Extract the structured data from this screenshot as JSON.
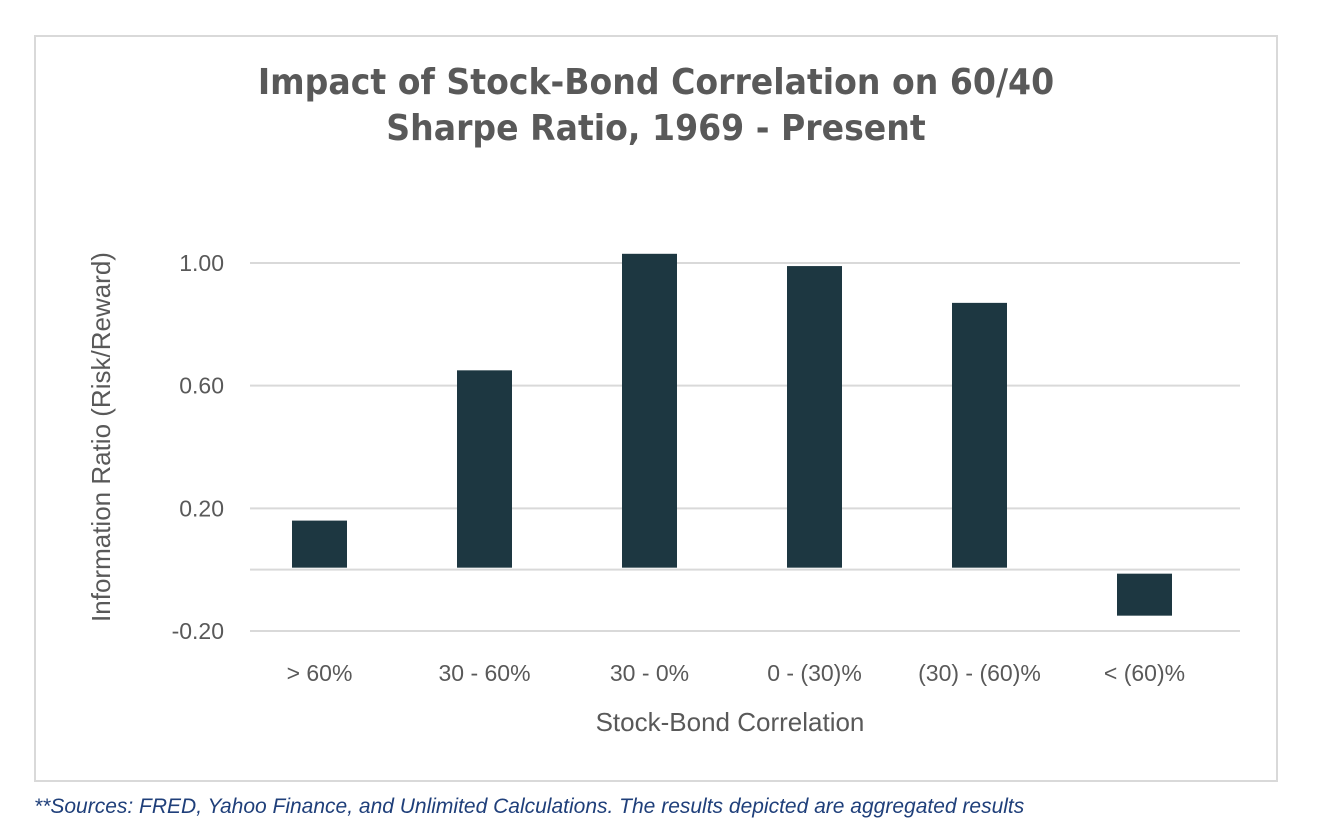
{
  "chart_data": {
    "type": "bar",
    "title_lines": [
      "Impact of Stock-Bond Correlation on 60/40",
      "Sharpe Ratio, 1969 - Present"
    ],
    "xlabel": "Stock-Bond Correlation",
    "ylabel": "Information Ratio (Risk/Reward)",
    "categories": [
      "> 60%",
      "30 - 60%",
      "30 - 0%",
      "0 - (30)%",
      "(30) - (60)%",
      "< (60)%"
    ],
    "values": [
      0.16,
      0.65,
      1.03,
      0.99,
      0.87,
      -0.15
    ],
    "ylim": [
      -0.2,
      1.0
    ],
    "yticks": [
      1.0,
      0.6,
      0.2,
      -0.2
    ],
    "ytick_labels": [
      "1.00",
      "0.60",
      "0.20",
      "-0.20"
    ],
    "gridlines": [
      1.0,
      0.6,
      0.2,
      0.0,
      -0.2
    ],
    "grid": true,
    "legend": "none",
    "bar_color": "#1d3741",
    "grid_color": "#d9d9d9",
    "axis_text_color": "#595959"
  },
  "footnote": "**Sources: FRED, Yahoo Finance, and Unlimited Calculations. The results depicted are aggregated results"
}
